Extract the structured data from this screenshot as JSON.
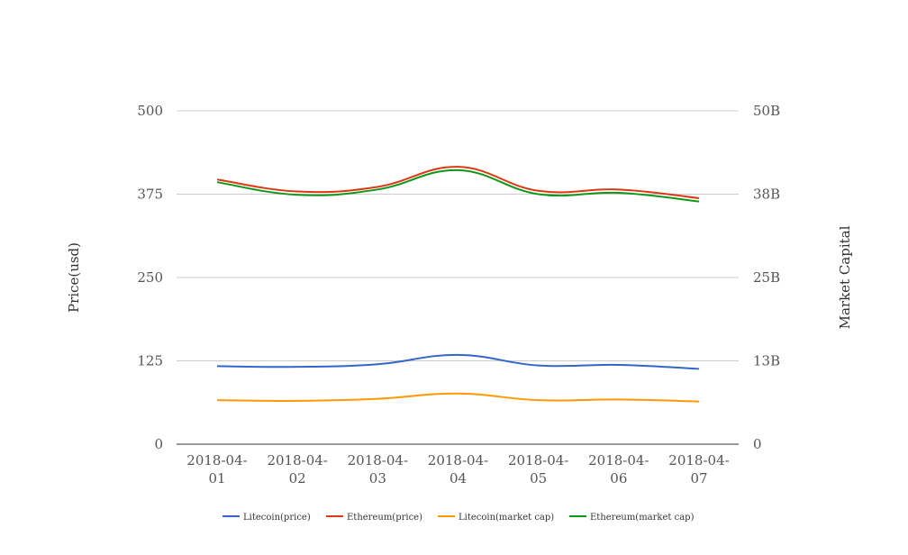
{
  "chart_data": {
    "type": "line",
    "categories": [
      [
        "2018-04-",
        "01"
      ],
      [
        "2018-04-",
        "02"
      ],
      [
        "2018-04-",
        "03"
      ],
      [
        "2018-04-",
        "04"
      ],
      [
        "2018-04-",
        "05"
      ],
      [
        "2018-04-",
        "06"
      ],
      [
        "2018-04-",
        "07"
      ]
    ],
    "y_left": {
      "label": "Price(usd)",
      "ticks": [
        "0",
        "125",
        "250",
        "375",
        "500"
      ],
      "ylim": [
        0,
        500
      ]
    },
    "y_right": {
      "label": "Market Capital",
      "ticks": [
        "0",
        "13B",
        "25B",
        "38B",
        "50B"
      ],
      "ylim": [
        0,
        50
      ]
    },
    "grid": true,
    "legend_position": "bottom",
    "series": [
      {
        "name": "Litecoin(price)",
        "color": "#3366cc",
        "axis": "left",
        "values": [
          117,
          116,
          120,
          134,
          118,
          119,
          113
        ]
      },
      {
        "name": "Ethereum(price)",
        "color": "#dc3912",
        "axis": "left",
        "values": [
          397,
          379,
          386,
          416,
          380,
          382,
          369
        ]
      },
      {
        "name": "Litecoin(market cap)",
        "color": "#ff9900",
        "axis": "right",
        "values": [
          6.6,
          6.5,
          6.8,
          7.6,
          6.6,
          6.7,
          6.4
        ]
      },
      {
        "name": "Ethereum(market cap)",
        "color": "#109618",
        "axis": "right",
        "values": [
          39.3,
          37.4,
          38.2,
          41.1,
          37.5,
          37.7,
          36.4
        ]
      }
    ]
  }
}
